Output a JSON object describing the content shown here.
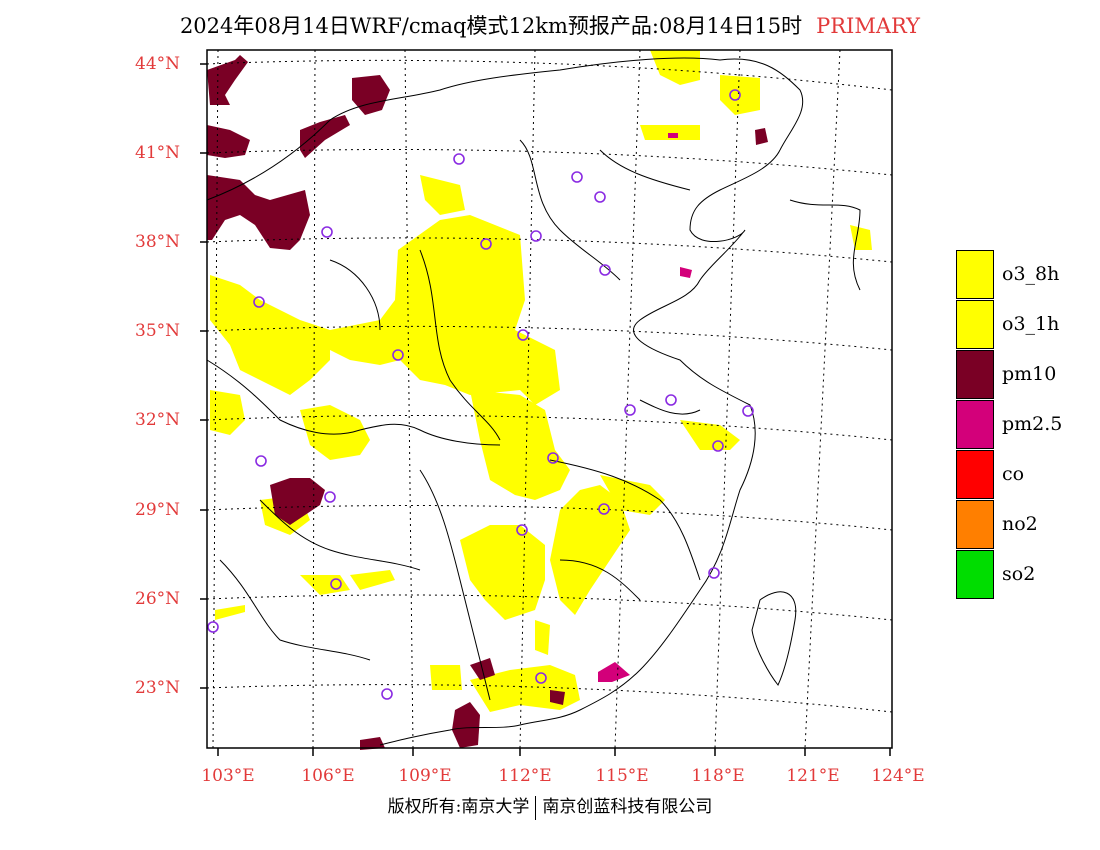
{
  "title": {
    "main": "2024年08月14日WRF/cmaq模式12km预报产品:08月14日15时",
    "mode": "PRIMARY"
  },
  "axes": {
    "lat_labels": [
      "44°N",
      "41°N",
      "38°N",
      "35°N",
      "32°N",
      "29°N",
      "26°N",
      "23°N"
    ],
    "lon_labels": [
      "103°E",
      "106°E",
      "109°E",
      "112°E",
      "115°E",
      "118°E",
      "121°E",
      "124°E"
    ]
  },
  "legend": [
    {
      "label": "o3_8h",
      "color": "#ffff00"
    },
    {
      "label": "o3_1h",
      "color": "#ffff00"
    },
    {
      "label": "pm10",
      "color": "#7a0025"
    },
    {
      "label": "pm2.5",
      "color": "#d3007a"
    },
    {
      "label": "co",
      "color": "#ff0000"
    },
    {
      "label": "no2",
      "color": "#ff7f00"
    },
    {
      "label": "so2",
      "color": "#00dd00"
    }
  ],
  "colors": {
    "station_marker": "#8a2be2",
    "label_text": "#e23a3a"
  },
  "footer": {
    "left": "版权所有:南京大学",
    "right": "南京创蓝科技有限公司"
  }
}
